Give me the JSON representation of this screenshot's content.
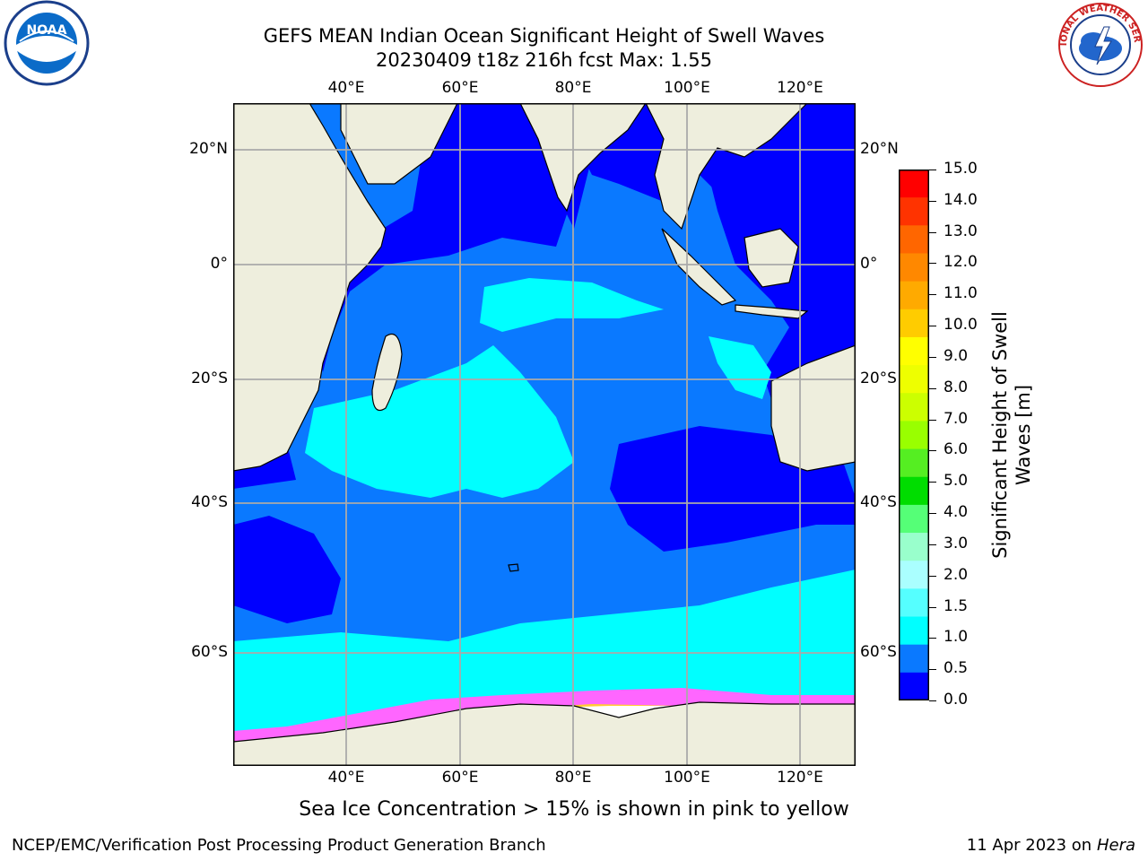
{
  "title": {
    "line1": "GEFS MEAN Indian Ocean Significant Height of Swell Waves",
    "line2": "20230409 t18z 216h fcst   Max: 1.55"
  },
  "map": {
    "lon_ticks": [
      "40°E",
      "60°E",
      "80°E",
      "100°E",
      "120°E"
    ],
    "lat_ticks_left": [
      "20°N",
      "0°",
      "20°S",
      "40°S",
      "60°S"
    ],
    "lat_ticks_right": [
      "20°N",
      "0°",
      "20°S",
      "40°S",
      "60°S"
    ],
    "colors": {
      "land": "#eeeedd",
      "ocean_0": "#0000ff",
      "ocean_05": "#0a79ff",
      "ocean_1": "#00ffff",
      "ice_pink": "#ff66ff",
      "ice_yellow": "#ffcc33",
      "grid": "#aaaaaa"
    }
  },
  "colorbar": {
    "label": "Significant Height of Swell Waves [m]",
    "ticks": [
      "15.0",
      "14.0",
      "13.0",
      "12.0",
      "11.0",
      "10.0",
      "9.0",
      "8.0",
      "7.0",
      "6.0",
      "5.0",
      "4.0",
      "3.0",
      "2.0",
      "1.5",
      "1.0",
      "0.5",
      "0.0"
    ],
    "colors": [
      "#ff0000",
      "#ff3300",
      "#ff6600",
      "#ff8800",
      "#ffaa00",
      "#ffcc00",
      "#ffff00",
      "#eeff00",
      "#ccff00",
      "#99ff00",
      "#55ee22",
      "#00dd00",
      "#55ff77",
      "#99ffcc",
      "#aaffff",
      "#55ffff",
      "#00ffff",
      "#0a79ff",
      "#0000ff"
    ]
  },
  "note": "Sea Ice Concentration > 15% is shown in pink to yellow",
  "footer": {
    "credit": "NCEP/EMC/Verification Post Processing Product Generation Branch",
    "date": "11 Apr 2023 on",
    "host": "Hera"
  },
  "logos": {
    "noaa": "NOAA",
    "nws": "NATIONAL WEATHER SERVICE"
  }
}
